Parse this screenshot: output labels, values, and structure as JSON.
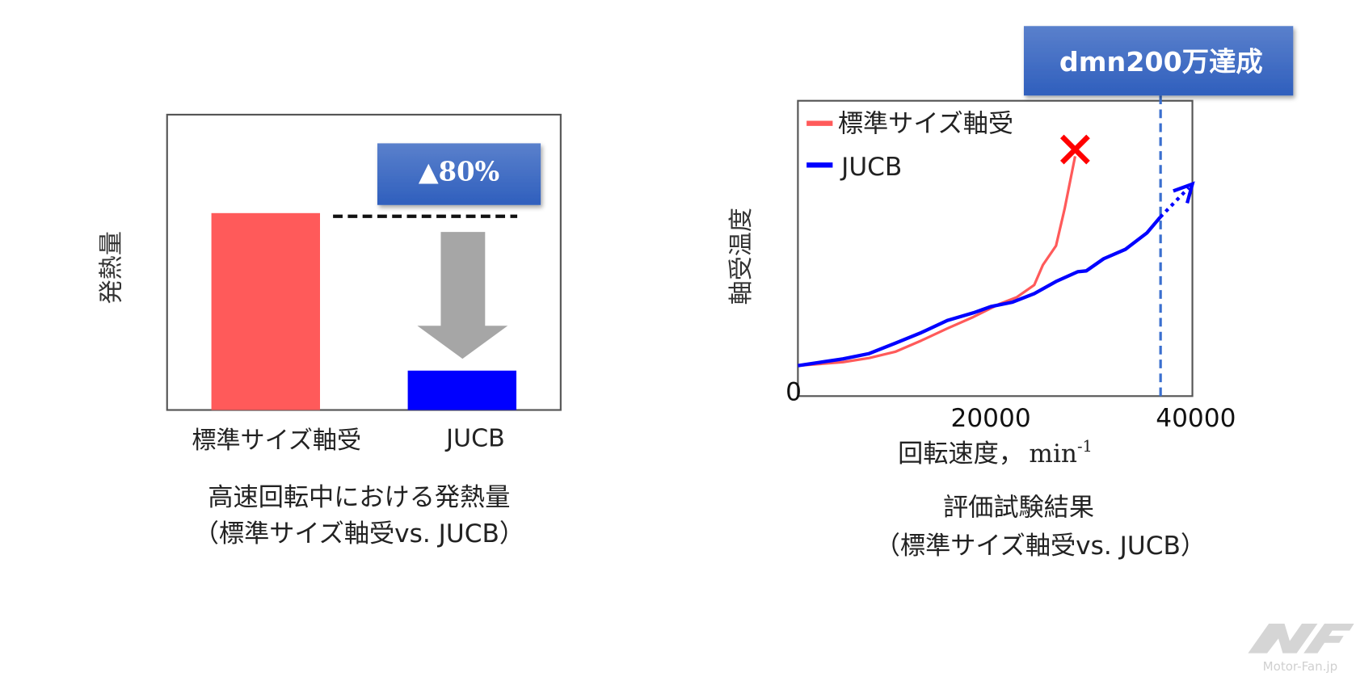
{
  "colors": {
    "standard": "#ff5a5a",
    "jucb": "#0000ff",
    "callout": "#3a67c0",
    "arrow": "#a6a6a6",
    "fail": "#ff0000",
    "dmn_line": "#3a6fcf"
  },
  "chart_data": [
    {
      "type": "bar",
      "title": "高速回転中における発熱量",
      "subtitle": "（標準サイズ軸受vs. JUCB）",
      "ylabel": "発熱量",
      "xlabel": "",
      "categories": [
        "標準サイズ軸受",
        "JUCB"
      ],
      "values": [
        100,
        20
      ],
      "ylim": [
        0,
        150
      ],
      "reference_line": "dashed line at standard bearing level",
      "annotation": "▲80%"
    },
    {
      "type": "line",
      "title": "評価試験結果",
      "subtitle": "（標準サイズ軸受vs. JUCB）",
      "xlabel_main": "回転速度，",
      "xlabel_unit": "min",
      "xlabel_exp": "-1",
      "ylabel": "軸受温度",
      "xlim": [
        0,
        41000
      ],
      "ylim": [
        0,
        100
      ],
      "x_ticks": [
        {
          "value": 20000,
          "label": "20000"
        },
        {
          "value": 40000,
          "label": "40000"
        }
      ],
      "y_origin_label": "0",
      "legend": "top-left",
      "series": [
        {
          "name": "標準サイズ軸受",
          "color": "#ff5a5a",
          "x": [
            0,
            4685,
            7387,
            10090,
            12793,
            15495,
            18198,
            20900,
            22700,
            24500,
            25400,
            26760,
            27660,
            28740
          ],
          "y": [
            10.3,
            11.5,
            12.9,
            15,
            18.8,
            22.9,
            26.8,
            31.2,
            33.5,
            37.6,
            44.4,
            50.9,
            63.5,
            81.2
          ]
        },
        {
          "name": "JUCB",
          "color": "#0000ff",
          "x": [
            0,
            4685,
            7387,
            10090,
            12793,
            15495,
            18198,
            20000,
            22250,
            24500,
            26760,
            29000,
            29900,
            31700,
            33960,
            36200,
            37570
          ],
          "y": [
            10.3,
            12.6,
            14.4,
            17.9,
            21.5,
            25.6,
            28.2,
            30.3,
            31.8,
            34.7,
            38.8,
            42.1,
            42.4,
            46.5,
            49.7,
            55.3,
            60.6
          ]
        }
      ],
      "failure_marker": {
        "x": 28740,
        "y": 83.5,
        "symbol": "×"
      },
      "extrapolation": {
        "from": [
          37570,
          60.6
        ],
        "to": [
          40900,
          71.8
        ]
      },
      "threshold": {
        "x": 37600,
        "label": "dmn200万達成"
      }
    }
  ],
  "logo": {
    "text": "Motor-Fan.jp",
    "mark": "MF"
  }
}
